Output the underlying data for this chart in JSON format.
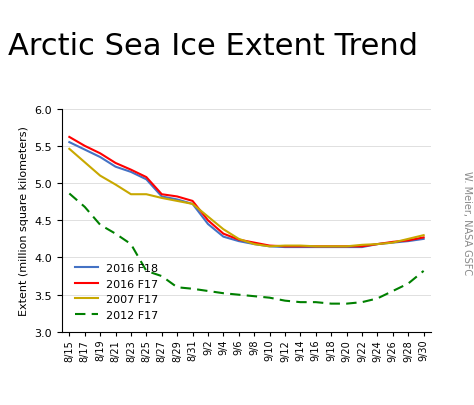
{
  "title": "Arctic Sea Ice Extent Trend",
  "ylabel": "Extent (million square kilometers)",
  "watermark": "W. Meier, NASA GSFC",
  "ylim": [
    3.0,
    6.0
  ],
  "yticks": [
    3.0,
    3.5,
    4.0,
    4.5,
    5.0,
    5.5,
    6.0
  ],
  "x_labels": [
    "8/15",
    "8/17",
    "8/19",
    "8/21",
    "8/23",
    "8/25",
    "8/27",
    "8/29",
    "8/31",
    "9/2",
    "9/4",
    "9/6",
    "9/8",
    "9/10",
    "9/12",
    "9/14",
    "9/16",
    "9/18",
    "9/20",
    "9/22",
    "9/24",
    "9/26",
    "9/28",
    "9/30"
  ],
  "series": [
    {
      "label": "2016 F18",
      "color": "#4472C4",
      "linestyle": "solid",
      "linewidth": 1.5,
      "values": [
        5.55,
        5.45,
        5.35,
        5.22,
        5.15,
        5.05,
        4.82,
        4.78,
        4.72,
        4.45,
        4.28,
        4.22,
        4.18,
        4.15,
        4.14,
        4.14,
        4.14,
        4.14,
        4.14,
        4.14,
        4.18,
        4.2,
        4.22,
        4.25
      ]
    },
    {
      "label": "2016 F17",
      "color": "#FF0000",
      "linestyle": "solid",
      "linewidth": 1.5,
      "values": [
        5.62,
        5.5,
        5.4,
        5.27,
        5.18,
        5.08,
        4.85,
        4.82,
        4.76,
        4.5,
        4.32,
        4.24,
        4.2,
        4.16,
        4.15,
        4.15,
        4.15,
        4.15,
        4.15,
        4.15,
        4.18,
        4.21,
        4.23,
        4.27
      ]
    },
    {
      "label": "2007 F17",
      "color": "#C8A800",
      "linestyle": "solid",
      "linewidth": 1.5,
      "values": [
        5.46,
        5.28,
        5.1,
        4.98,
        4.85,
        4.85,
        4.8,
        4.76,
        4.72,
        4.55,
        4.38,
        4.25,
        4.18,
        4.15,
        4.16,
        4.16,
        4.15,
        4.15,
        4.15,
        4.17,
        4.18,
        4.2,
        4.25,
        4.3
      ]
    },
    {
      "label": "2012 F17",
      "color": "#008000",
      "linestyle": "dashed",
      "linewidth": 1.5,
      "dashes": [
        5,
        3
      ],
      "values": [
        4.86,
        4.68,
        4.44,
        4.32,
        4.18,
        3.82,
        3.75,
        3.6,
        3.58,
        3.55,
        3.52,
        3.5,
        3.48,
        3.46,
        3.42,
        3.4,
        3.4,
        3.38,
        3.38,
        3.4,
        3.45,
        3.55,
        3.65,
        3.82
      ]
    }
  ],
  "title_fontsize": 22,
  "ylabel_fontsize": 8,
  "ytick_fontsize": 8,
  "xtick_fontsize": 7,
  "legend_fontsize": 8,
  "watermark_fontsize": 7,
  "figure_width": 4.74,
  "figure_height": 4.06,
  "dpi": 100
}
